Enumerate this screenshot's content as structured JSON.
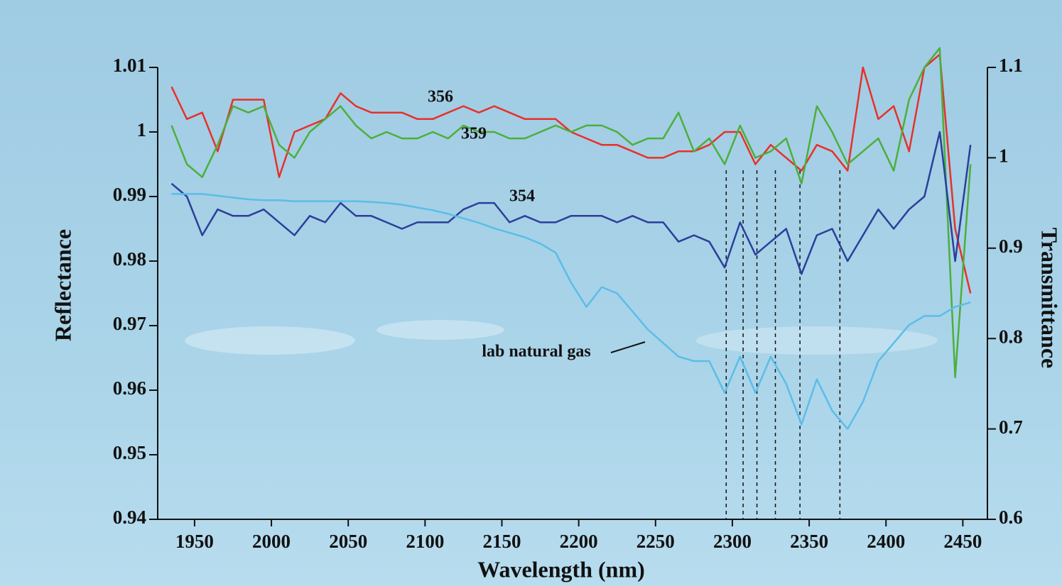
{
  "chart_data": {
    "type": "line",
    "x_label": "Wavelength (nm)",
    "y_label": "Reflectance",
    "y2_label": "Transmittance",
    "x": [
      1935,
      1945,
      1955,
      1965,
      1975,
      1985,
      1995,
      2005,
      2015,
      2025,
      2035,
      2045,
      2055,
      2065,
      2075,
      2085,
      2095,
      2105,
      2115,
      2125,
      2135,
      2145,
      2155,
      2165,
      2175,
      2185,
      2195,
      2205,
      2215,
      2225,
      2235,
      2245,
      2255,
      2265,
      2275,
      2285,
      2295,
      2305,
      2315,
      2325,
      2335,
      2345,
      2355,
      2365,
      2375,
      2385,
      2395,
      2405,
      2415,
      2425,
      2435,
      2445,
      2455
    ],
    "series": [
      {
        "name": "356",
        "color": "#e8302a",
        "values": [
          1.007,
          1.002,
          1.003,
          0.997,
          1.005,
          1.005,
          1.005,
          0.993,
          1.0,
          1.001,
          1.002,
          1.006,
          1.004,
          1.003,
          1.003,
          1.003,
          1.002,
          1.002,
          1.003,
          1.004,
          1.003,
          1.004,
          1.003,
          1.002,
          1.002,
          1.002,
          1.0,
          0.999,
          0.998,
          0.998,
          0.997,
          0.996,
          0.996,
          0.997,
          0.997,
          0.998,
          1.0,
          1.0,
          0.995,
          0.998,
          0.996,
          0.994,
          0.998,
          0.997,
          0.994,
          1.01,
          1.002,
          1.004,
          0.997,
          1.01,
          1.012,
          0.985,
          0.975
        ]
      },
      {
        "name": "359",
        "color": "#4caf3a",
        "values": [
          1.001,
          0.995,
          0.993,
          0.998,
          1.004,
          1.003,
          1.004,
          0.998,
          0.996,
          1.0,
          1.002,
          1.004,
          1.001,
          0.999,
          1.0,
          0.999,
          0.999,
          1.0,
          0.999,
          1.001,
          1.0,
          1.0,
          0.999,
          0.999,
          1.0,
          1.001,
          1.0,
          1.001,
          1.001,
          1.0,
          0.998,
          0.999,
          0.999,
          1.003,
          0.997,
          0.999,
          0.995,
          1.001,
          0.996,
          0.997,
          0.999,
          0.992,
          1.004,
          1.0,
          0.995,
          0.997,
          0.999,
          0.994,
          1.005,
          1.01,
          1.013,
          0.962,
          0.995
        ]
      },
      {
        "name": "354",
        "color": "#2b3f9a",
        "values": [
          0.992,
          0.99,
          0.984,
          0.988,
          0.987,
          0.987,
          0.988,
          0.986,
          0.984,
          0.987,
          0.986,
          0.989,
          0.987,
          0.987,
          0.986,
          0.985,
          0.986,
          0.986,
          0.986,
          0.988,
          0.989,
          0.989,
          0.986,
          0.987,
          0.986,
          0.986,
          0.987,
          0.987,
          0.987,
          0.986,
          0.987,
          0.986,
          0.986,
          0.983,
          0.984,
          0.983,
          0.979,
          0.986,
          0.981,
          0.983,
          0.985,
          0.978,
          0.984,
          0.985,
          0.98,
          0.984,
          0.988,
          0.985,
          0.988,
          0.99,
          1.0,
          0.98,
          0.998
        ]
      },
      {
        "name": "lab natural gas",
        "color": "#5bbde8",
        "axis": "y2",
        "values": [
          0.96,
          0.96,
          0.96,
          0.958,
          0.956,
          0.954,
          0.953,
          0.953,
          0.952,
          0.952,
          0.952,
          0.952,
          0.952,
          0.951,
          0.95,
          0.948,
          0.945,
          0.942,
          0.938,
          0.933,
          0.928,
          0.922,
          0.917,
          0.912,
          0.905,
          0.895,
          0.862,
          0.835,
          0.857,
          0.85,
          0.83,
          0.81,
          0.795,
          0.78,
          0.775,
          0.775,
          0.74,
          0.78,
          0.74,
          0.78,
          0.75,
          0.705,
          0.755,
          0.72,
          0.7,
          0.73,
          0.775,
          0.795,
          0.815,
          0.825,
          0.825,
          0.835,
          0.84
        ]
      }
    ],
    "vlines": [
      2296,
      2307,
      2316,
      2328,
      2344,
      2370
    ],
    "xlim": [
      1926,
      2466
    ],
    "xticks": [
      1950,
      2000,
      2050,
      2100,
      2150,
      2200,
      2250,
      2300,
      2350,
      2400,
      2450
    ],
    "ylim": [
      0.94,
      1.01
    ],
    "yticks": [
      0.94,
      0.95,
      0.96,
      0.97,
      0.98,
      0.99,
      1,
      1.01
    ],
    "y2lim": [
      0.6,
      1.1
    ],
    "y2ticks": [
      0.6,
      0.7,
      0.8,
      0.9,
      1,
      1.1
    ]
  }
}
